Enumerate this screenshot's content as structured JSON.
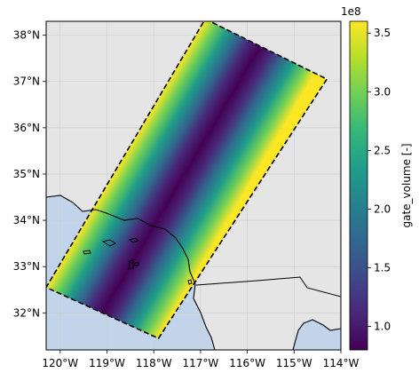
{
  "chart_data": {
    "type": "heatmap",
    "title": "",
    "map": {
      "x_tick_labels": [
        "120°W",
        "119°W",
        "118°W",
        "117°W",
        "116°W",
        "115°W",
        "114°W"
      ],
      "x_tick_values": [
        -120,
        -119,
        -118,
        -117,
        -116,
        -115,
        -114
      ],
      "y_tick_labels": [
        "32°N",
        "33°N",
        "34°N",
        "35°N",
        "36°N",
        "37°N",
        "38°N"
      ],
      "y_tick_values": [
        32,
        33,
        34,
        35,
        36,
        37,
        38
      ],
      "xlim": [
        -120.3,
        -114.0
      ],
      "ylim": [
        31.2,
        38.3
      ],
      "grid": true,
      "swath_corners": [
        {
          "lon": -116.9,
          "lat": 38.35
        },
        {
          "lon": -114.3,
          "lat": 37.05
        },
        {
          "lon": -117.9,
          "lat": 31.45
        },
        {
          "lon": -120.3,
          "lat": 32.55
        }
      ],
      "gate_volume_profile": {
        "position_across_swath": [
          0.0,
          0.1,
          0.2,
          0.3,
          0.4,
          0.5,
          0.6,
          0.7,
          0.8,
          0.9,
          1.0
        ],
        "value": [
          355000000,
          295000000,
          230000000,
          160000000,
          105000000,
          80000000,
          105000000,
          160000000,
          230000000,
          295000000,
          355000000
        ]
      }
    },
    "colorbar": {
      "label": "gate_volume [-]",
      "multiplier": "1e8",
      "tick_labels": [
        "1.0",
        "1.5",
        "2.0",
        "2.5",
        "3.0",
        "3.5"
      ],
      "tick_values": [
        1.0,
        1.5,
        2.0,
        2.5,
        3.0,
        3.5
      ],
      "range": [
        0.8,
        3.6
      ],
      "colormap": "viridis"
    },
    "colors": {
      "land": "#e5e5e5",
      "ocean": "#c2d4ea",
      "coastline": "#000000",
      "swath_border": "#000000",
      "grid": "#cccccc"
    }
  }
}
